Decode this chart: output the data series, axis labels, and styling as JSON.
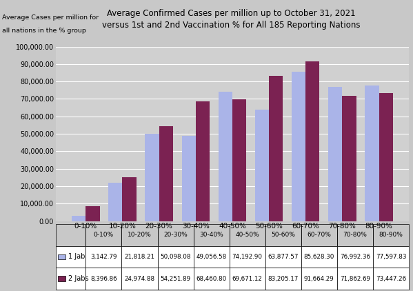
{
  "title_line1": "Average Confirmed Cases per million up to October 31, 2021",
  "title_line2": "versus 1st and 2nd Vaccination % for All 185 Reporting Nations",
  "ylabel_top": "Average Cases per million for",
  "ylabel_bottom": "all nations in the % group",
  "categories": [
    "0-10%",
    "10-20%",
    "20-30%",
    "30-40%",
    "40-50%",
    "50-60%",
    "60-70%",
    "70-80%",
    "80-90%"
  ],
  "jab1": [
    3142.79,
    21818.21,
    50098.08,
    49056.58,
    74192.9,
    63877.57,
    85628.3,
    76992.36,
    77597.83
  ],
  "jab2": [
    8396.86,
    24974.88,
    54251.89,
    68460.8,
    69671.12,
    83205.17,
    91664.29,
    71862.69,
    73447.26
  ],
  "jab1_label": "1 Jab",
  "jab2_label": "2 Jabs",
  "jab1_color": "#aab4e8",
  "jab2_color": "#7b2252",
  "background_color": "#c8c8c8",
  "plot_bg_color": "#d0d0d0",
  "ylim_max": 100000,
  "ytick_step": 10000,
  "jab1_table": [
    "3,142.79",
    "21,818.21",
    "50,098.08",
    "49,056.58",
    "74,192.90",
    "63,877.57",
    "85,628.30",
    "76,992.36",
    "77,597.83"
  ],
  "jab2_table": [
    "8,396.86",
    "24,974.88",
    "54,251.89",
    "68,460.80",
    "69,671.12",
    "83,205.17",
    "91,664.29",
    "71,862.69",
    "73,447.26"
  ]
}
